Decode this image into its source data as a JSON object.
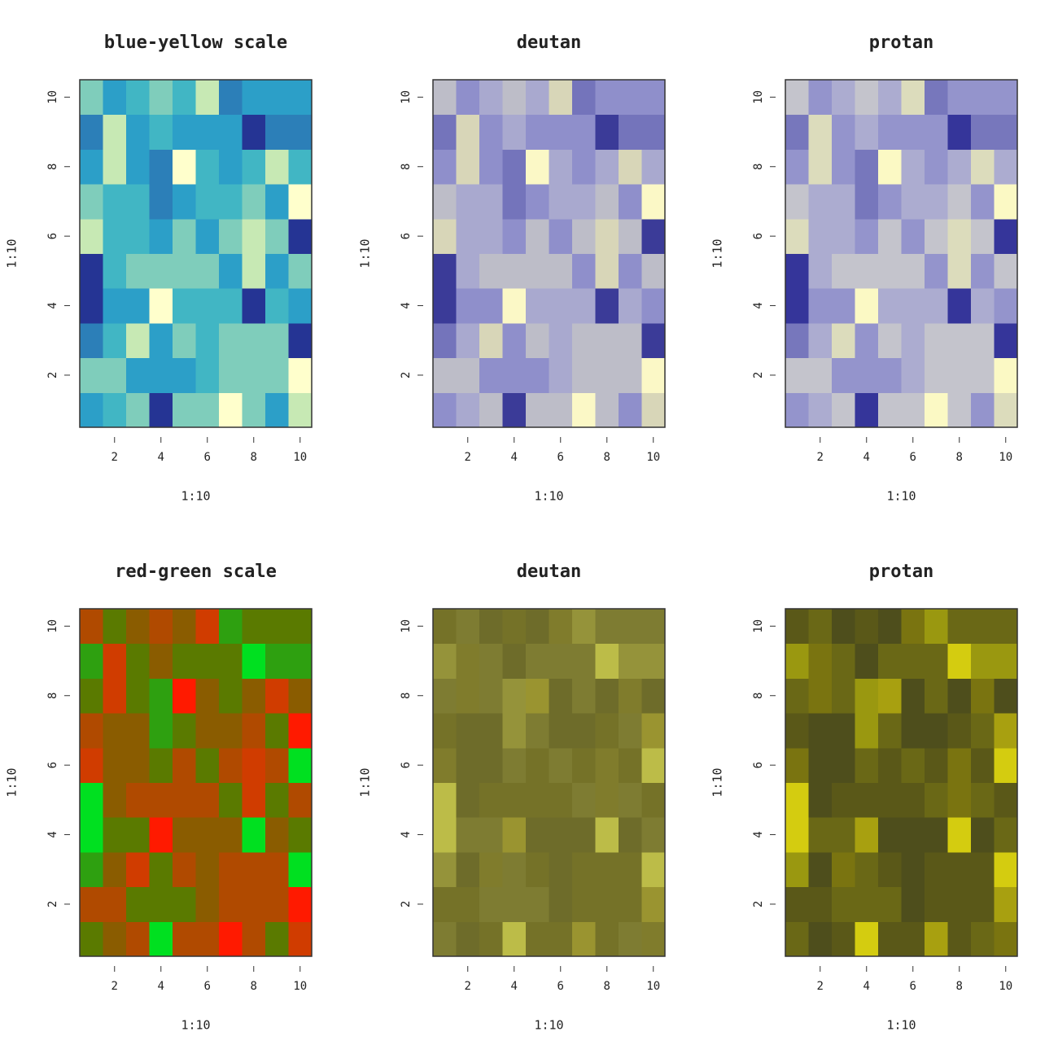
{
  "chart_data": [
    {
      "type": "heatmap",
      "title": "blue-yellow scale",
      "xlabel": "1:10",
      "ylabel": "1:10",
      "x": [
        1,
        2,
        3,
        4,
        5,
        6,
        7,
        8,
        9,
        10
      ],
      "y": [
        1,
        2,
        3,
        4,
        5,
        6,
        7,
        8,
        9,
        10
      ],
      "z": [
        [
          5,
          4,
          3,
          7,
          3,
          3,
          1,
          3,
          5,
          2
        ],
        [
          3,
          3,
          5,
          5,
          5,
          4,
          3,
          3,
          3,
          1
        ],
        [
          6,
          4,
          2,
          5,
          3,
          4,
          3,
          3,
          3,
          7
        ],
        [
          7,
          5,
          5,
          1,
          4,
          4,
          4,
          7,
          4,
          5
        ],
        [
          7,
          4,
          3,
          3,
          3,
          3,
          5,
          2,
          5,
          3
        ],
        [
          2,
          4,
          4,
          5,
          3,
          5,
          3,
          2,
          3,
          7
        ],
        [
          3,
          4,
          4,
          6,
          5,
          4,
          4,
          3,
          5,
          1
        ],
        [
          5,
          2,
          5,
          6,
          1,
          4,
          5,
          4,
          2,
          4
        ],
        [
          6,
          2,
          5,
          4,
          5,
          5,
          5,
          7,
          6,
          6
        ],
        [
          3,
          5,
          4,
          3,
          4,
          2,
          6,
          5,
          5,
          5
        ]
      ],
      "palette": [
        "#ffffcc",
        "#c7e9b4",
        "#7fcdbb",
        "#41b6c4",
        "#2c9fc8",
        "#2c7fb8",
        "#253494"
      ],
      "xlim": [
        0.5,
        10.5
      ],
      "ylim": [
        0.5,
        10.5
      ],
      "xticks": [
        2,
        4,
        6,
        8,
        10
      ],
      "yticks": [
        2,
        4,
        6,
        8,
        10
      ]
    },
    {
      "type": "heatmap",
      "title": "deutan",
      "xlabel": "1:10",
      "ylabel": "1:10",
      "x": [
        1,
        2,
        3,
        4,
        5,
        6,
        7,
        8,
        9,
        10
      ],
      "y": [
        1,
        2,
        3,
        4,
        5,
        6,
        7,
        8,
        9,
        10
      ],
      "z": [
        [
          5,
          4,
          3,
          7,
          3,
          3,
          1,
          3,
          5,
          2
        ],
        [
          3,
          3,
          5,
          5,
          5,
          4,
          3,
          3,
          3,
          1
        ],
        [
          6,
          4,
          2,
          5,
          3,
          4,
          3,
          3,
          3,
          7
        ],
        [
          7,
          5,
          5,
          1,
          4,
          4,
          4,
          7,
          4,
          5
        ],
        [
          7,
          4,
          3,
          3,
          3,
          3,
          5,
          2,
          5,
          3
        ],
        [
          2,
          4,
          4,
          5,
          3,
          5,
          3,
          2,
          3,
          7
        ],
        [
          3,
          4,
          4,
          6,
          5,
          4,
          4,
          3,
          5,
          1
        ],
        [
          5,
          2,
          5,
          6,
          1,
          4,
          5,
          4,
          2,
          4
        ],
        [
          6,
          2,
          5,
          4,
          5,
          5,
          5,
          7,
          6,
          6
        ],
        [
          3,
          5,
          4,
          3,
          4,
          2,
          6,
          5,
          5,
          5
        ]
      ],
      "palette": [
        "#fbf8c6",
        "#d8d6b8",
        "#bdbdc8",
        "#a9a9cf",
        "#8f8fcb",
        "#7474bb",
        "#3b3b98"
      ],
      "xlim": [
        0.5,
        10.5
      ],
      "ylim": [
        0.5,
        10.5
      ],
      "xticks": [
        2,
        4,
        6,
        8,
        10
      ],
      "yticks": [
        2,
        4,
        6,
        8,
        10
      ]
    },
    {
      "type": "heatmap",
      "title": "protan",
      "xlabel": "1:10",
      "ylabel": "1:10",
      "x": [
        1,
        2,
        3,
        4,
        5,
        6,
        7,
        8,
        9,
        10
      ],
      "y": [
        1,
        2,
        3,
        4,
        5,
        6,
        7,
        8,
        9,
        10
      ],
      "z": [
        [
          5,
          4,
          3,
          7,
          3,
          3,
          1,
          3,
          5,
          2
        ],
        [
          3,
          3,
          5,
          5,
          5,
          4,
          3,
          3,
          3,
          1
        ],
        [
          6,
          4,
          2,
          5,
          3,
          4,
          3,
          3,
          3,
          7
        ],
        [
          7,
          5,
          5,
          1,
          4,
          4,
          4,
          7,
          4,
          5
        ],
        [
          7,
          4,
          3,
          3,
          3,
          3,
          5,
          2,
          5,
          3
        ],
        [
          2,
          4,
          4,
          5,
          3,
          5,
          3,
          2,
          3,
          7
        ],
        [
          3,
          4,
          4,
          6,
          5,
          4,
          4,
          3,
          5,
          1
        ],
        [
          5,
          2,
          5,
          6,
          1,
          4,
          5,
          4,
          2,
          4
        ],
        [
          6,
          2,
          5,
          4,
          5,
          5,
          5,
          7,
          6,
          6
        ],
        [
          3,
          5,
          4,
          3,
          4,
          2,
          6,
          5,
          5,
          5
        ]
      ],
      "palette": [
        "#fbf9c4",
        "#dcdcbc",
        "#c4c4cc",
        "#acacd0",
        "#9494cc",
        "#7777bc",
        "#35359a"
      ],
      "xlim": [
        0.5,
        10.5
      ],
      "ylim": [
        0.5,
        10.5
      ],
      "xticks": [
        2,
        4,
        6,
        8,
        10
      ],
      "yticks": [
        2,
        4,
        6,
        8,
        10
      ]
    },
    {
      "type": "heatmap",
      "title": "red-green scale",
      "xlabel": "1:10",
      "ylabel": "1:10",
      "x": [
        1,
        2,
        3,
        4,
        5,
        6,
        7,
        8,
        9,
        10
      ],
      "y": [
        1,
        2,
        3,
        4,
        5,
        6,
        7,
        8,
        9,
        10
      ],
      "z": [
        [
          5,
          4,
          3,
          7,
          3,
          3,
          1,
          3,
          5,
          2
        ],
        [
          3,
          3,
          5,
          5,
          5,
          4,
          3,
          3,
          3,
          1
        ],
        [
          6,
          4,
          2,
          5,
          3,
          4,
          3,
          3,
          3,
          7
        ],
        [
          7,
          5,
          5,
          1,
          4,
          4,
          4,
          7,
          4,
          5
        ],
        [
          7,
          4,
          3,
          3,
          3,
          3,
          5,
          2,
          5,
          3
        ],
        [
          2,
          4,
          4,
          5,
          3,
          5,
          3,
          2,
          3,
          7
        ],
        [
          3,
          4,
          4,
          6,
          5,
          4,
          4,
          3,
          5,
          1
        ],
        [
          5,
          2,
          5,
          6,
          1,
          4,
          5,
          4,
          2,
          4
        ],
        [
          6,
          2,
          5,
          4,
          5,
          5,
          5,
          7,
          6,
          6
        ],
        [
          3,
          5,
          4,
          3,
          4,
          2,
          6,
          5,
          5,
          5
        ]
      ],
      "palette": [
        "#ff1a00",
        "#d03c00",
        "#b04a00",
        "#8a5c00",
        "#5a7a00",
        "#2ea010",
        "#00e020"
      ],
      "xlim": [
        0.5,
        10.5
      ],
      "ylim": [
        0.5,
        10.5
      ],
      "xticks": [
        2,
        4,
        6,
        8,
        10
      ],
      "yticks": [
        2,
        4,
        6,
        8,
        10
      ]
    },
    {
      "type": "heatmap",
      "title": "deutan",
      "xlabel": "1:10",
      "ylabel": "1:10",
      "x": [
        1,
        2,
        3,
        4,
        5,
        6,
        7,
        8,
        9,
        10
      ],
      "y": [
        1,
        2,
        3,
        4,
        5,
        6,
        7,
        8,
        9,
        10
      ],
      "z": [
        [
          5,
          4,
          3,
          7,
          3,
          3,
          1,
          3,
          5,
          2
        ],
        [
          3,
          3,
          5,
          5,
          5,
          4,
          3,
          3,
          3,
          1
        ],
        [
          6,
          4,
          2,
          5,
          3,
          4,
          3,
          3,
          3,
          7
        ],
        [
          7,
          5,
          5,
          1,
          4,
          4,
          4,
          7,
          4,
          5
        ],
        [
          7,
          4,
          3,
          3,
          3,
          3,
          5,
          2,
          5,
          3
        ],
        [
          2,
          4,
          4,
          5,
          3,
          5,
          3,
          2,
          3,
          7
        ],
        [
          3,
          4,
          4,
          6,
          5,
          4,
          4,
          3,
          5,
          1
        ],
        [
          5,
          2,
          5,
          6,
          1,
          4,
          5,
          4,
          2,
          4
        ],
        [
          6,
          2,
          5,
          4,
          5,
          5,
          5,
          7,
          6,
          6
        ],
        [
          3,
          5,
          4,
          3,
          4,
          2,
          6,
          5,
          5,
          5
        ]
      ],
      "palette": [
        "#9a9430",
        "#807c2c",
        "#757228",
        "#6e6c2a",
        "#7e7c32",
        "#95933a",
        "#bcbc48"
      ],
      "xlim": [
        0.5,
        10.5
      ],
      "ylim": [
        0.5,
        10.5
      ],
      "xticks": [
        2,
        4,
        6,
        8,
        10
      ],
      "yticks": [
        2,
        4,
        6,
        8,
        10
      ]
    },
    {
      "type": "heatmap",
      "title": "protan",
      "xlabel": "1:10",
      "ylabel": "1:10",
      "x": [
        1,
        2,
        3,
        4,
        5,
        6,
        7,
        8,
        9,
        10
      ],
      "y": [
        1,
        2,
        3,
        4,
        5,
        6,
        7,
        8,
        9,
        10
      ],
      "z": [
        [
          5,
          4,
          3,
          7,
          3,
          3,
          1,
          3,
          5,
          2
        ],
        [
          3,
          3,
          5,
          5,
          5,
          4,
          3,
          3,
          3,
          1
        ],
        [
          6,
          4,
          2,
          5,
          3,
          4,
          3,
          3,
          3,
          7
        ],
        [
          7,
          5,
          5,
          1,
          4,
          4,
          4,
          7,
          4,
          5
        ],
        [
          7,
          4,
          3,
          3,
          3,
          3,
          5,
          2,
          5,
          3
        ],
        [
          2,
          4,
          4,
          5,
          3,
          5,
          3,
          2,
          3,
          7
        ],
        [
          3,
          4,
          4,
          6,
          5,
          4,
          4,
          3,
          5,
          1
        ],
        [
          5,
          2,
          5,
          6,
          1,
          4,
          5,
          4,
          2,
          4
        ],
        [
          6,
          2,
          5,
          4,
          5,
          5,
          5,
          7,
          6,
          6
        ],
        [
          3,
          5,
          4,
          3,
          4,
          2,
          6,
          5,
          5,
          5
        ]
      ],
      "palette": [
        "#a8a010",
        "#7a7410",
        "#5a5818",
        "#4e4e1c",
        "#6a6816",
        "#9a9810",
        "#d4cc10"
      ],
      "xlim": [
        0.5,
        10.5
      ],
      "ylim": [
        0.5,
        10.5
      ],
      "xticks": [
        2,
        4,
        6,
        8,
        10
      ],
      "yticks": [
        2,
        4,
        6,
        8,
        10
      ]
    }
  ]
}
